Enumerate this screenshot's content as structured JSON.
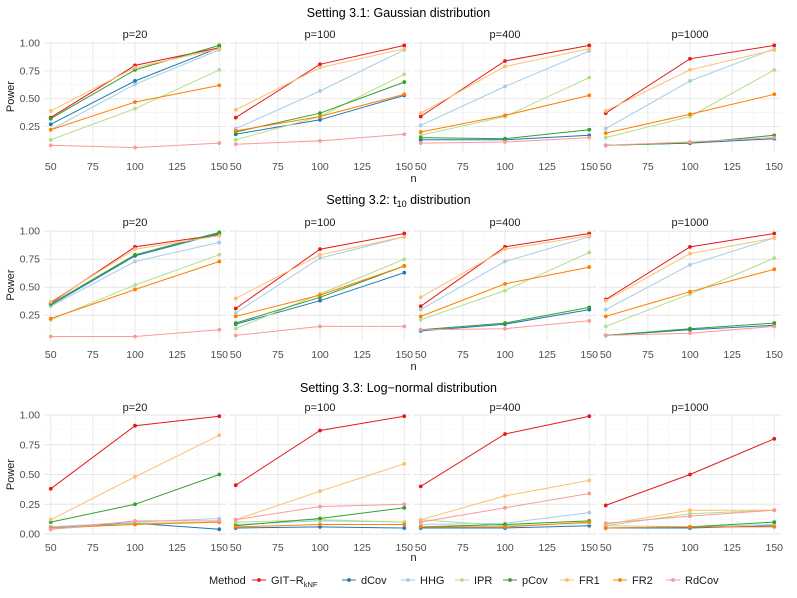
{
  "legend": {
    "title": "Method",
    "items": [
      {
        "name": "GIT-R_kNF",
        "label_main": "GIT−R",
        "label_sub": "kNF",
        "color": "#e41a1c"
      },
      {
        "name": "dCov",
        "label_main": "dCov",
        "label_sub": "",
        "color": "#1f78b4"
      },
      {
        "name": "HHG",
        "label_main": "HHG",
        "label_sub": "",
        "color": "#a6cee3"
      },
      {
        "name": "IPR",
        "label_main": "IPR",
        "label_sub": "",
        "color": "#b2df8a"
      },
      {
        "name": "pCov",
        "label_main": "pCov",
        "label_sub": "",
        "color": "#33a02c"
      },
      {
        "name": "FR1",
        "label_main": "FR1",
        "label_sub": "",
        "color": "#fdbf6f"
      },
      {
        "name": "FR2",
        "label_main": "FR2",
        "label_sub": "",
        "color": "#ff7f00"
      },
      {
        "name": "RdCov",
        "label_main": "RdCov",
        "label_sub": "",
        "color": "#fb9a99"
      }
    ]
  },
  "chart_data": [
    {
      "type": "line",
      "title": "Setting 3.1: Gaussian distribution",
      "title_main": "Setting 3.1: Gaussian distribution",
      "title_sub": "",
      "title_rest": "",
      "xlabel": "n",
      "ylabel": "Power",
      "x": [
        50,
        100,
        150
      ],
      "xticks": [
        50,
        75,
        100,
        125,
        150
      ],
      "ylim": [
        0.02,
        1.02
      ],
      "yticks": [
        0.25,
        0.5,
        0.75,
        1.0
      ],
      "ytick_labels": [
        "0.25",
        "0.50",
        "0.75",
        "1.00"
      ],
      "panels": [
        {
          "label": "p=20",
          "series": [
            {
              "name": "GIT-R_kNF",
              "values": [
                0.33,
                0.8,
                0.96
              ]
            },
            {
              "name": "dCov",
              "values": [
                0.27,
                0.66,
                0.96
              ]
            },
            {
              "name": "HHG",
              "values": [
                0.22,
                0.63,
                0.94
              ]
            },
            {
              "name": "IPR",
              "values": [
                0.13,
                0.41,
                0.76
              ]
            },
            {
              "name": "pCov",
              "values": [
                0.32,
                0.76,
                0.98
              ]
            },
            {
              "name": "FR1",
              "values": [
                0.39,
                0.78,
                0.95
              ]
            },
            {
              "name": "FR2",
              "values": [
                0.22,
                0.47,
                0.62
              ]
            },
            {
              "name": "RdCov",
              "values": [
                0.08,
                0.06,
                0.1
              ]
            }
          ]
        },
        {
          "label": "p=100",
          "series": [
            {
              "name": "GIT-R_kNF",
              "values": [
                0.33,
                0.81,
                0.98
              ]
            },
            {
              "name": "dCov",
              "values": [
                0.18,
                0.31,
                0.53
              ]
            },
            {
              "name": "HHG",
              "values": [
                0.23,
                0.57,
                0.94
              ]
            },
            {
              "name": "IPR",
              "values": [
                0.13,
                0.34,
                0.72
              ]
            },
            {
              "name": "pCov",
              "values": [
                0.2,
                0.37,
                0.65
              ]
            },
            {
              "name": "FR1",
              "values": [
                0.4,
                0.78,
                0.95
              ]
            },
            {
              "name": "FR2",
              "values": [
                0.21,
                0.34,
                0.54
              ]
            },
            {
              "name": "RdCov",
              "values": [
                0.09,
                0.12,
                0.18
              ]
            }
          ]
        },
        {
          "label": "p=400",
          "series": [
            {
              "name": "GIT-R_kNF",
              "values": [
                0.34,
                0.84,
                0.98
              ]
            },
            {
              "name": "dCov",
              "values": [
                0.13,
                0.13,
                0.17
              ]
            },
            {
              "name": "HHG",
              "values": [
                0.26,
                0.61,
                0.93
              ]
            },
            {
              "name": "IPR",
              "values": [
                0.17,
                0.34,
                0.69
              ]
            },
            {
              "name": "pCov",
              "values": [
                0.15,
                0.14,
                0.22
              ]
            },
            {
              "name": "FR1",
              "values": [
                0.37,
                0.79,
                0.95
              ]
            },
            {
              "name": "FR2",
              "values": [
                0.2,
                0.35,
                0.53
              ]
            },
            {
              "name": "RdCov",
              "values": [
                0.1,
                0.11,
                0.15
              ]
            }
          ]
        },
        {
          "label": "p=1000",
          "series": [
            {
              "name": "GIT-R_kNF",
              "values": [
                0.37,
                0.86,
                0.98
              ]
            },
            {
              "name": "dCov",
              "values": [
                0.08,
                0.1,
                0.14
              ]
            },
            {
              "name": "HHG",
              "values": [
                0.23,
                0.66,
                0.95
              ]
            },
            {
              "name": "IPR",
              "values": [
                0.15,
                0.34,
                0.76
              ]
            },
            {
              "name": "pCov",
              "values": [
                0.08,
                0.1,
                0.17
              ]
            },
            {
              "name": "FR1",
              "values": [
                0.39,
                0.76,
                0.94
              ]
            },
            {
              "name": "FR2",
              "values": [
                0.19,
                0.36,
                0.54
              ]
            },
            {
              "name": "RdCov",
              "values": [
                0.08,
                0.11,
                0.15
              ]
            }
          ]
        }
      ]
    },
    {
      "type": "line",
      "title": "Setting 3.2: t10 distribution",
      "title_main": "Setting 3.2: t",
      "title_sub": "10",
      "title_rest": " distribution",
      "xlabel": "n",
      "ylabel": "Power",
      "x": [
        50,
        100,
        150
      ],
      "xticks": [
        50,
        75,
        100,
        125,
        150
      ],
      "ylim": [
        0.02,
        1.02
      ],
      "yticks": [
        0.25,
        0.5,
        0.75,
        1.0
      ],
      "ytick_labels": [
        "0.25",
        "0.50",
        "0.75",
        "1.00"
      ],
      "panels": [
        {
          "label": "p=20",
          "series": [
            {
              "name": "GIT-R_kNF",
              "values": [
                0.36,
                0.86,
                0.97
              ]
            },
            {
              "name": "dCov",
              "values": [
                0.34,
                0.78,
                0.98
              ]
            },
            {
              "name": "HHG",
              "values": [
                0.33,
                0.73,
                0.9
              ]
            },
            {
              "name": "IPR",
              "values": [
                0.21,
                0.52,
                0.79
              ]
            },
            {
              "name": "pCov",
              "values": [
                0.35,
                0.79,
                0.99
              ]
            },
            {
              "name": "FR1",
              "values": [
                0.37,
                0.84,
                0.96
              ]
            },
            {
              "name": "FR2",
              "values": [
                0.22,
                0.48,
                0.73
              ]
            },
            {
              "name": "RdCov",
              "values": [
                0.06,
                0.06,
                0.12
              ]
            }
          ]
        },
        {
          "label": "p=100",
          "series": [
            {
              "name": "GIT-R_kNF",
              "values": [
                0.31,
                0.84,
                0.98
              ]
            },
            {
              "name": "dCov",
              "values": [
                0.17,
                0.38,
                0.63
              ]
            },
            {
              "name": "HHG",
              "values": [
                0.27,
                0.76,
                0.95
              ]
            },
            {
              "name": "IPR",
              "values": [
                0.13,
                0.44,
                0.75
              ]
            },
            {
              "name": "pCov",
              "values": [
                0.18,
                0.41,
                0.69
              ]
            },
            {
              "name": "FR1",
              "values": [
                0.4,
                0.79,
                0.95
              ]
            },
            {
              "name": "FR2",
              "values": [
                0.24,
                0.43,
                0.69
              ]
            },
            {
              "name": "RdCov",
              "values": [
                0.07,
                0.15,
                0.15
              ]
            }
          ]
        },
        {
          "label": "p=400",
          "series": [
            {
              "name": "GIT-R_kNF",
              "values": [
                0.33,
                0.86,
                0.98
              ]
            },
            {
              "name": "dCov",
              "values": [
                0.11,
                0.17,
                0.3
              ]
            },
            {
              "name": "HHG",
              "values": [
                0.3,
                0.73,
                0.95
              ]
            },
            {
              "name": "IPR",
              "values": [
                0.21,
                0.47,
                0.81
              ]
            },
            {
              "name": "pCov",
              "values": [
                0.12,
                0.18,
                0.32
              ]
            },
            {
              "name": "FR1",
              "values": [
                0.41,
                0.84,
                0.96
              ]
            },
            {
              "name": "FR2",
              "values": [
                0.24,
                0.53,
                0.68
              ]
            },
            {
              "name": "RdCov",
              "values": [
                0.12,
                0.13,
                0.2
              ]
            }
          ]
        },
        {
          "label": "p=1000",
          "series": [
            {
              "name": "GIT-R_kNF",
              "values": [
                0.39,
                0.86,
                0.98
              ]
            },
            {
              "name": "dCov",
              "values": [
                0.07,
                0.12,
                0.16
              ]
            },
            {
              "name": "HHG",
              "values": [
                0.3,
                0.7,
                0.94
              ]
            },
            {
              "name": "IPR",
              "values": [
                0.15,
                0.44,
                0.76
              ]
            },
            {
              "name": "pCov",
              "values": [
                0.07,
                0.13,
                0.18
              ]
            },
            {
              "name": "FR1",
              "values": [
                0.38,
                0.8,
                0.94
              ]
            },
            {
              "name": "FR2",
              "values": [
                0.24,
                0.46,
                0.66
              ]
            },
            {
              "name": "RdCov",
              "values": [
                0.07,
                0.09,
                0.15
              ]
            }
          ]
        }
      ]
    },
    {
      "type": "line",
      "title": "Setting 3.3: Log−normal distribution",
      "title_main": "Setting 3.3: Log−normal distribution",
      "title_sub": "",
      "title_rest": "",
      "xlabel": "n",
      "ylabel": "Power",
      "x": [
        50,
        100,
        150
      ],
      "xticks": [
        50,
        75,
        100,
        125,
        150
      ],
      "ylim": [
        0.0,
        1.0
      ],
      "yticks": [
        0.0,
        0.25,
        0.5,
        0.75,
        1.0
      ],
      "ytick_labels": [
        "0.00",
        "0.25",
        "0.50",
        "0.75",
        "1.00"
      ],
      "panels": [
        {
          "label": "p=20",
          "series": [
            {
              "name": "GIT-R_kNF",
              "values": [
                0.38,
                0.91,
                0.99
              ]
            },
            {
              "name": "dCov",
              "values": [
                0.06,
                0.09,
                0.04
              ]
            },
            {
              "name": "HHG",
              "values": [
                0.06,
                0.1,
                0.13
              ]
            },
            {
              "name": "IPR",
              "values": [
                0.04,
                0.09,
                0.1
              ]
            },
            {
              "name": "pCov",
              "values": [
                0.1,
                0.25,
                0.5
              ]
            },
            {
              "name": "FR1",
              "values": [
                0.12,
                0.48,
                0.83
              ]
            },
            {
              "name": "FR2",
              "values": [
                0.05,
                0.08,
                0.1
              ]
            },
            {
              "name": "RdCov",
              "values": [
                0.04,
                0.11,
                0.11
              ]
            }
          ]
        },
        {
          "label": "p=100",
          "series": [
            {
              "name": "GIT-R_kNF",
              "values": [
                0.41,
                0.87,
                0.99
              ]
            },
            {
              "name": "dCov",
              "values": [
                0.05,
                0.06,
                0.05
              ]
            },
            {
              "name": "HHG",
              "values": [
                0.08,
                0.11,
                0.1
              ]
            },
            {
              "name": "IPR",
              "values": [
                0.1,
                0.12,
                0.1
              ]
            },
            {
              "name": "pCov",
              "values": [
                0.07,
                0.13,
                0.22
              ]
            },
            {
              "name": "FR1",
              "values": [
                0.12,
                0.36,
                0.59
              ]
            },
            {
              "name": "FR2",
              "values": [
                0.06,
                0.08,
                0.08
              ]
            },
            {
              "name": "RdCov",
              "values": [
                0.12,
                0.23,
                0.25
              ]
            }
          ]
        },
        {
          "label": "p=400",
          "series": [
            {
              "name": "GIT-R_kNF",
              "values": [
                0.4,
                0.84,
                0.99
              ]
            },
            {
              "name": "dCov",
              "values": [
                0.05,
                0.05,
                0.07
              ]
            },
            {
              "name": "HHG",
              "values": [
                0.08,
                0.09,
                0.18
              ]
            },
            {
              "name": "IPR",
              "values": [
                0.12,
                0.07,
                0.09
              ]
            },
            {
              "name": "pCov",
              "values": [
                0.06,
                0.08,
                0.11
              ]
            },
            {
              "name": "FR1",
              "values": [
                0.12,
                0.32,
                0.45
              ]
            },
            {
              "name": "FR2",
              "values": [
                0.06,
                0.06,
                0.1
              ]
            },
            {
              "name": "RdCov",
              "values": [
                0.1,
                0.22,
                0.34
              ]
            }
          ]
        },
        {
          "label": "p=1000",
          "series": [
            {
              "name": "GIT-R_kNF",
              "values": [
                0.24,
                0.5,
                0.8
              ]
            },
            {
              "name": "dCov",
              "values": [
                0.05,
                0.05,
                0.07
              ]
            },
            {
              "name": "HHG",
              "values": [
                0.07,
                0.06,
                0.08
              ]
            },
            {
              "name": "IPR",
              "values": [
                0.07,
                0.17,
                0.2
              ]
            },
            {
              "name": "pCov",
              "values": [
                0.05,
                0.06,
                0.1
              ]
            },
            {
              "name": "FR1",
              "values": [
                0.08,
                0.2,
                0.2
              ]
            },
            {
              "name": "FR2",
              "values": [
                0.05,
                0.06,
                0.06
              ]
            },
            {
              "name": "RdCov",
              "values": [
                0.09,
                0.15,
                0.2
              ]
            }
          ]
        }
      ]
    }
  ]
}
